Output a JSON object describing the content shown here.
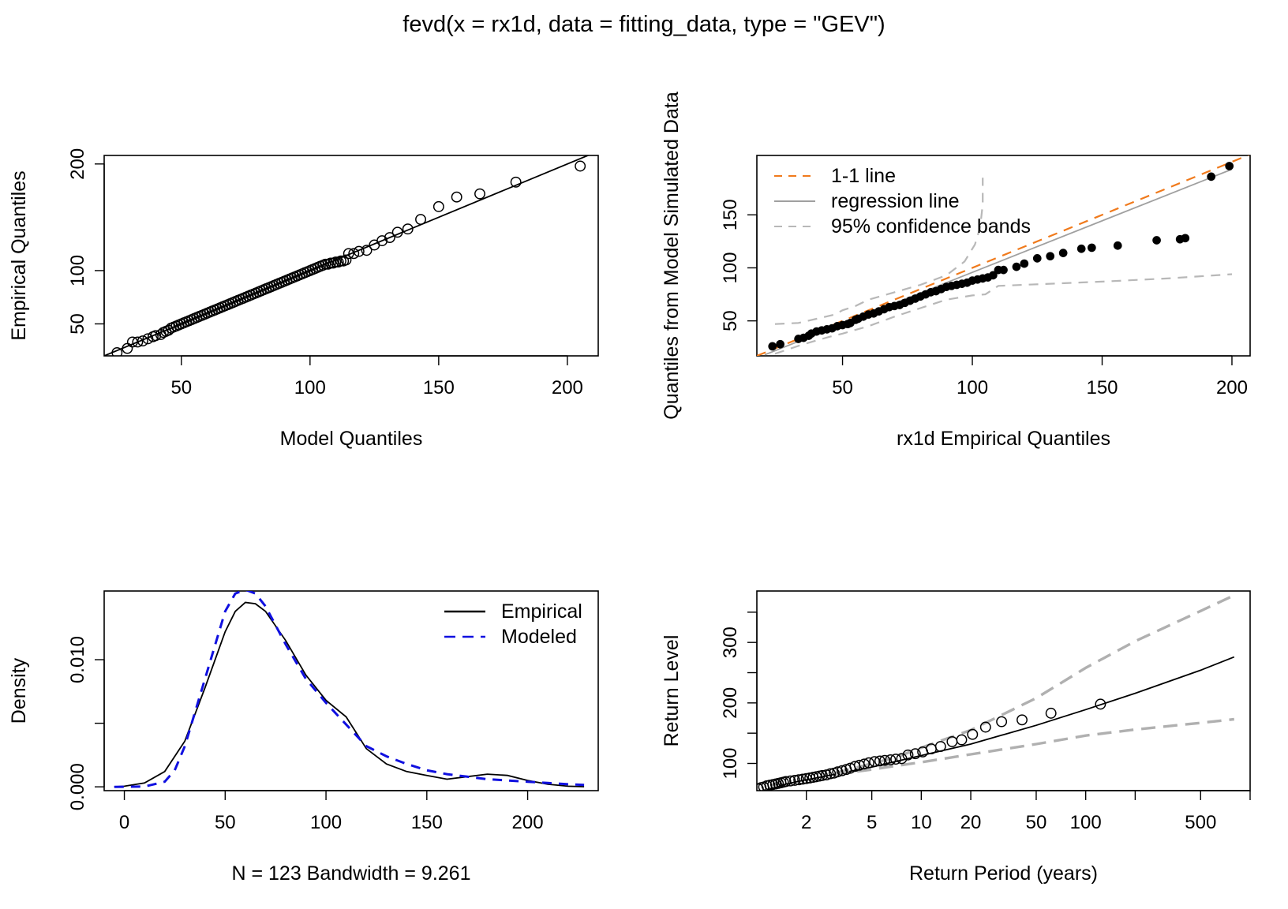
{
  "figure": {
    "title": "fevd(x = rx1d, data = fitting_data, type = \"GEV\")"
  },
  "chart_data": [
    {
      "type": "scatter",
      "xlabel": "Model Quantiles",
      "ylabel": "Empirical Quantiles",
      "xlim": [
        20,
        212
      ],
      "ylim": [
        20,
        208
      ],
      "xticks": [
        50,
        100,
        150,
        200
      ],
      "yticks": [
        50,
        100,
        200
      ],
      "xtick_labels": [
        "50",
        "100",
        "150",
        "200"
      ],
      "ytick_labels": [
        "50",
        "100",
        "200"
      ],
      "marker": "open-circle",
      "points": [
        [
          25,
          23
        ],
        [
          29,
          27
        ],
        [
          31,
          33
        ],
        [
          33,
          33
        ],
        [
          35,
          34
        ],
        [
          37,
          36
        ],
        [
          39,
          38
        ],
        [
          40,
          39
        ],
        [
          42,
          40
        ],
        [
          43,
          42
        ],
        [
          44,
          43
        ],
        [
          45,
          44
        ],
        [
          46,
          46
        ],
        [
          47,
          47
        ],
        [
          48,
          48
        ],
        [
          49,
          49
        ],
        [
          50,
          50
        ],
        [
          51,
          51
        ],
        [
          52,
          52
        ],
        [
          53,
          53
        ],
        [
          54,
          54
        ],
        [
          55,
          55
        ],
        [
          56,
          56
        ],
        [
          57,
          57
        ],
        [
          58,
          58
        ],
        [
          59,
          59
        ],
        [
          60,
          60
        ],
        [
          61,
          61
        ],
        [
          62,
          62
        ],
        [
          63,
          63
        ],
        [
          64,
          64
        ],
        [
          65,
          65
        ],
        [
          66,
          66
        ],
        [
          67,
          67
        ],
        [
          68,
          68
        ],
        [
          69,
          69
        ],
        [
          70,
          70
        ],
        [
          71,
          71
        ],
        [
          72,
          72
        ],
        [
          73,
          73
        ],
        [
          74,
          74
        ],
        [
          75,
          75
        ],
        [
          76,
          76
        ],
        [
          77,
          77
        ],
        [
          78,
          78
        ],
        [
          79,
          79
        ],
        [
          80,
          80
        ],
        [
          81,
          81
        ],
        [
          82,
          82
        ],
        [
          83,
          83
        ],
        [
          84,
          84
        ],
        [
          85,
          85
        ],
        [
          86,
          86
        ],
        [
          87,
          87
        ],
        [
          88,
          88
        ],
        [
          89,
          89
        ],
        [
          90,
          90
        ],
        [
          91,
          91
        ],
        [
          92,
          92
        ],
        [
          93,
          93
        ],
        [
          94,
          94
        ],
        [
          95,
          95
        ],
        [
          96,
          96
        ],
        [
          97,
          97
        ],
        [
          98,
          98
        ],
        [
          99,
          99
        ],
        [
          100,
          100
        ],
        [
          101,
          101
        ],
        [
          102,
          102
        ],
        [
          103,
          103
        ],
        [
          104,
          104
        ],
        [
          105,
          105
        ],
        [
          106,
          106
        ],
        [
          107,
          106
        ],
        [
          108,
          107
        ],
        [
          109,
          107
        ],
        [
          110,
          108
        ],
        [
          111,
          108
        ],
        [
          112,
          109
        ],
        [
          113,
          109
        ],
        [
          114,
          110
        ],
        [
          115,
          116
        ],
        [
          117,
          116
        ],
        [
          119,
          118
        ],
        [
          122,
          119
        ],
        [
          125,
          124
        ],
        [
          128,
          128
        ],
        [
          131,
          131
        ],
        [
          134,
          136
        ],
        [
          138,
          139
        ],
        [
          143,
          148
        ],
        [
          150,
          160
        ],
        [
          157,
          169
        ],
        [
          166,
          172
        ],
        [
          180,
          183
        ],
        [
          205,
          198
        ]
      ],
      "reference_line": {
        "type": "1-1",
        "color": "#000000"
      }
    },
    {
      "type": "scatter",
      "xlabel": "rx1d Empirical Quantiles",
      "ylabel": "Quantiles from Model Simulated Data",
      "xlim": [
        17,
        207
      ],
      "ylim": [
        17,
        206
      ],
      "xticks": [
        50,
        100,
        150,
        200
      ],
      "yticks": [
        50,
        100,
        150
      ],
      "xtick_labels": [
        "50",
        "100",
        "150",
        "200"
      ],
      "ytick_labels": [
        "50",
        "100",
        "150"
      ],
      "marker": "filled-circle",
      "points": [
        [
          23,
          26
        ],
        [
          26,
          28
        ],
        [
          33,
          33
        ],
        [
          35,
          34
        ],
        [
          37,
          36
        ],
        [
          38,
          38
        ],
        [
          40,
          40
        ],
        [
          42,
          41
        ],
        [
          44,
          42
        ],
        [
          46,
          43
        ],
        [
          48,
          45
        ],
        [
          50,
          46
        ],
        [
          52,
          47
        ],
        [
          53,
          48
        ],
        [
          55,
          51
        ],
        [
          56,
          52
        ],
        [
          58,
          54
        ],
        [
          60,
          56
        ],
        [
          62,
          57
        ],
        [
          64,
          59
        ],
        [
          66,
          61
        ],
        [
          68,
          63
        ],
        [
          70,
          64
        ],
        [
          72,
          65
        ],
        [
          74,
          67
        ],
        [
          76,
          69
        ],
        [
          78,
          71
        ],
        [
          80,
          73
        ],
        [
          82,
          75
        ],
        [
          84,
          77
        ],
        [
          86,
          78
        ],
        [
          88,
          80
        ],
        [
          90,
          82
        ],
        [
          92,
          83
        ],
        [
          94,
          84
        ],
        [
          96,
          85
        ],
        [
          98,
          86
        ],
        [
          100,
          88
        ],
        [
          102,
          89
        ],
        [
          104,
          90
        ],
        [
          106,
          91
        ],
        [
          108,
          93
        ],
        [
          110,
          98
        ],
        [
          112,
          98
        ],
        [
          117,
          101
        ],
        [
          120,
          104
        ],
        [
          125,
          109
        ],
        [
          130,
          111
        ],
        [
          135,
          114
        ],
        [
          142,
          118
        ],
        [
          146,
          119
        ],
        [
          156,
          121
        ],
        [
          171,
          126
        ],
        [
          180,
          127
        ],
        [
          182,
          128
        ],
        [
          192,
          186
        ],
        [
          199,
          196
        ]
      ],
      "series": [
        {
          "name": "1-1 line",
          "style": "dashed",
          "color": "#f07a1c",
          "x": [
            17,
            207
          ],
          "y": [
            17,
            207
          ]
        },
        {
          "name": "regression line",
          "style": "solid",
          "color": "#a0a0a0",
          "x": [
            20,
            200
          ],
          "y": [
            18,
            193
          ]
        },
        {
          "name": "95% confidence bands",
          "style": "dashed",
          "color": "#b8b8b8",
          "x": [
            24,
            33,
            40,
            47,
            50,
            55,
            60,
            70,
            80,
            90,
            97,
            101,
            103,
            104,
            104
          ],
          "y": [
            47,
            48,
            52,
            56,
            60,
            64,
            70,
            77,
            84,
            93,
            106,
            122,
            138,
            160,
            185
          ]
        },
        {
          "name": "95% confidence bands",
          "style": "dashed",
          "color": "#b8b8b8",
          "x": [
            24,
            35,
            45,
            50,
            60,
            70,
            80,
            90,
            100,
            105,
            110,
            130,
            150,
            175,
            200
          ],
          "y": [
            19,
            28,
            35,
            38,
            45,
            54,
            62,
            70,
            74,
            75,
            83,
            85,
            87,
            90,
            94
          ]
        }
      ],
      "legend": {
        "position": "top-left",
        "entries": [
          {
            "label": "1-1 line",
            "color": "#f07a1c",
            "style": "dashed"
          },
          {
            "label": "regression line",
            "color": "#a0a0a0",
            "style": "solid"
          },
          {
            "label": "95% confidence bands",
            "color": "#b8b8b8",
            "style": "dashed"
          }
        ]
      }
    },
    {
      "type": "line",
      "xlabel": "N = 123   Bandwidth = 9.261",
      "ylabel": "Density",
      "xlim": [
        -10,
        235
      ],
      "ylim": [
        -0.0003,
        0.0154
      ],
      "xticks": [
        0,
        50,
        100,
        150,
        200
      ],
      "yticks": [
        0,
        0.005,
        0.01
      ],
      "xtick_labels": [
        "0",
        "50",
        "100",
        "150",
        "200"
      ],
      "ytick_labels": [
        "0.000",
        "",
        "0.010"
      ],
      "series": [
        {
          "name": "Empirical",
          "color": "#000000",
          "style": "solid",
          "x": [
            -5,
            0,
            10,
            20,
            30,
            40,
            50,
            55,
            60,
            65,
            70,
            80,
            90,
            100,
            110,
            120,
            130,
            140,
            150,
            160,
            170,
            180,
            190,
            200,
            210,
            220,
            228
          ],
          "y": [
            0,
            5e-05,
            0.0003,
            0.0012,
            0.0036,
            0.0078,
            0.0122,
            0.0138,
            0.0145,
            0.0144,
            0.0138,
            0.0115,
            0.0088,
            0.0068,
            0.0055,
            0.003,
            0.0018,
            0.0012,
            0.0009,
            0.0006,
            0.0008,
            0.001,
            0.0009,
            0.0005,
            0.0002,
            5e-05,
            1e-05
          ]
        },
        {
          "name": "Modeled",
          "color": "#1010e0",
          "style": "dashed",
          "x": [
            -5,
            10,
            20,
            25,
            30,
            40,
            50,
            55,
            60,
            65,
            70,
            80,
            90,
            100,
            110,
            120,
            130,
            140,
            150,
            160,
            170,
            180,
            190,
            200,
            210,
            220,
            228
          ],
          "y": [
            0,
            2e-05,
            0.0004,
            0.0013,
            0.0032,
            0.0085,
            0.0138,
            0.0152,
            0.0155,
            0.0152,
            0.0142,
            0.0112,
            0.0085,
            0.0066,
            0.0049,
            0.0032,
            0.0024,
            0.0018,
            0.0013,
            0.001,
            0.0008,
            0.0006,
            0.0005,
            0.0004,
            0.0003,
            0.0002,
            0.00015
          ]
        }
      ],
      "legend": {
        "position": "top-right",
        "entries": [
          {
            "label": "Empirical",
            "color": "#000000",
            "style": "solid"
          },
          {
            "label": "Modeled",
            "color": "#1010e0",
            "style": "dashed"
          }
        ]
      }
    },
    {
      "type": "line",
      "xscale": "log",
      "xlabel": "Return Period (years)",
      "ylabel": "Return Level",
      "xlim": [
        1.0,
        1000
      ],
      "ylim": [
        55,
        385
      ],
      "xticks": [
        2,
        5,
        10,
        20,
        50,
        100,
        200,
        500,
        1000
      ],
      "xtick_labels": [
        "2",
        "5",
        "10",
        "20",
        "50",
        "100",
        "",
        "500",
        ""
      ],
      "yticks": [
        100,
        150,
        200,
        250,
        300,
        350
      ],
      "ytick_labels": [
        "100",
        "",
        "200",
        "",
        "300",
        ""
      ],
      "series": [
        {
          "name": "estimate",
          "color": "#000000",
          "style": "solid",
          "x": [
            1.0,
            1.5,
            2,
            3,
            5,
            10,
            20,
            50,
            100,
            200,
            500,
            800
          ],
          "y": [
            50,
            66,
            73,
            82,
            94,
            113,
            132,
            163,
            189,
            216,
            254,
            276
          ]
        },
        {
          "name": "upper",
          "color": "#b0b0b0",
          "style": "dashed",
          "x": [
            3,
            5,
            7,
            10,
            20,
            50,
            100,
            200,
            500,
            800
          ],
          "y": [
            84,
            100,
            110,
            126,
            155,
            208,
            258,
            302,
            352,
            378
          ]
        },
        {
          "name": "lower",
          "color": "#b0b0b0",
          "style": "dashed",
          "x": [
            3,
            5,
            7,
            10,
            20,
            50,
            100,
            200,
            500,
            800
          ],
          "y": [
            82,
            90,
            96,
            102,
            115,
            132,
            146,
            156,
            167,
            173
          ]
        }
      ],
      "points": [
        [
          1.02,
          58
        ],
        [
          1.06,
          60
        ],
        [
          1.1,
          61
        ],
        [
          1.15,
          63
        ],
        [
          1.2,
          64
        ],
        [
          1.25,
          65
        ],
        [
          1.3,
          66
        ],
        [
          1.35,
          67
        ],
        [
          1.4,
          68
        ],
        [
          1.45,
          69
        ],
        [
          1.5,
          70
        ],
        [
          1.6,
          71
        ],
        [
          1.7,
          72
        ],
        [
          1.8,
          73
        ],
        [
          1.9,
          74
        ],
        [
          2.0,
          75
        ],
        [
          2.1,
          76
        ],
        [
          2.2,
          77
        ],
        [
          2.3,
          78
        ],
        [
          2.4,
          79
        ],
        [
          2.5,
          80
        ],
        [
          2.65,
          81
        ],
        [
          2.8,
          83
        ],
        [
          2.95,
          84
        ],
        [
          3.1,
          86
        ],
        [
          3.3,
          88
        ],
        [
          3.5,
          90
        ],
        [
          3.7,
          92
        ],
        [
          3.95,
          95
        ],
        [
          4.2,
          97
        ],
        [
          4.5,
          99
        ],
        [
          4.8,
          101
        ],
        [
          5.2,
          103
        ],
        [
          5.6,
          104
        ],
        [
          6.0,
          105
        ],
        [
          6.5,
          106
        ],
        [
          7.0,
          107
        ],
        [
          7.6,
          108
        ],
        [
          8.3,
          114
        ],
        [
          9.2,
          116
        ],
        [
          10.2,
          119
        ],
        [
          11.5,
          124
        ],
        [
          13.1,
          128
        ],
        [
          15.4,
          136
        ],
        [
          17.6,
          139
        ],
        [
          20.5,
          148
        ],
        [
          24.6,
          160
        ],
        [
          30.8,
          169
        ],
        [
          41,
          172
        ],
        [
          61.5,
          183
        ],
        [
          123,
          198
        ]
      ]
    }
  ]
}
